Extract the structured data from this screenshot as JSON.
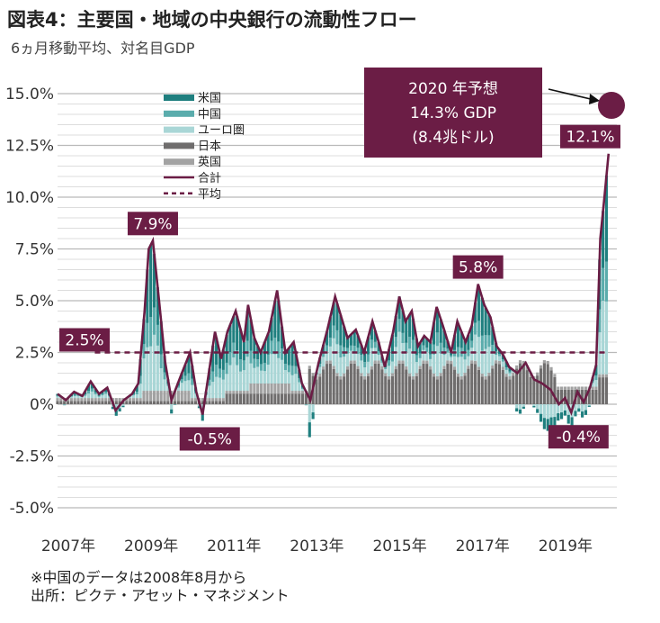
{
  "title": "図表4：主要国・地域の中央銀行の流動性フロー",
  "subtitle": "6ヵ月移動平均、対名目GDP",
  "footnotes": [
    "※中国のデータは2008年8月から",
    "出所：ピクテ・アセット・マネジメント"
  ],
  "colors": {
    "us": "#1f7f7f",
    "china": "#5aacac",
    "euro": "#a9d6d6",
    "japan": "#6f6d6d",
    "uk": "#a2a2a2",
    "total": "#6b1d45",
    "average": "#6b1d45"
  },
  "chart_data": {
    "type": "bar",
    "stacked": true,
    "grid": true,
    "legend_position": "top-left",
    "ylim": [
      -5.0,
      15.0
    ],
    "y_ticks": [
      "-5.0%",
      "-2.5%",
      "0%",
      "2.5%",
      "5.0%",
      "7.5%",
      "10.0%",
      "12.5%",
      "15.0%"
    ],
    "x_range": [
      2007.0,
      2020.5
    ],
    "x_ticks": [
      "2007年",
      "2009年",
      "2011年",
      "2013年",
      "2015年",
      "2017年",
      "2019年"
    ],
    "legend": [
      "米国",
      "中国",
      "ユーロ圏",
      "日本",
      "英国",
      "合計",
      "平均"
    ],
    "average_value": 2.5,
    "total_series": {
      "name": "合計",
      "points": [
        [
          2007.0,
          0.5
        ],
        [
          2007.2,
          0.2
        ],
        [
          2007.4,
          0.6
        ],
        [
          2007.6,
          0.4
        ],
        [
          2007.8,
          1.1
        ],
        [
          2008.0,
          0.5
        ],
        [
          2008.2,
          0.8
        ],
        [
          2008.4,
          -0.3
        ],
        [
          2008.6,
          0.2
        ],
        [
          2008.8,
          0.5
        ],
        [
          2008.95,
          1.0
        ],
        [
          2009.1,
          4.5
        ],
        [
          2009.2,
          7.5
        ],
        [
          2009.3,
          7.9
        ],
        [
          2009.45,
          5.0
        ],
        [
          2009.6,
          2.0
        ],
        [
          2009.75,
          0.2
        ],
        [
          2010.0,
          1.5
        ],
        [
          2010.2,
          2.5
        ],
        [
          2010.35,
          0.6
        ],
        [
          2010.5,
          -0.5
        ],
        [
          2010.65,
          1.5
        ],
        [
          2010.8,
          3.5
        ],
        [
          2010.95,
          2.2
        ],
        [
          2011.1,
          3.5
        ],
        [
          2011.3,
          4.5
        ],
        [
          2011.5,
          3.0
        ],
        [
          2011.6,
          4.8
        ],
        [
          2011.75,
          3.2
        ],
        [
          2011.9,
          2.5
        ],
        [
          2012.1,
          3.5
        ],
        [
          2012.3,
          5.5
        ],
        [
          2012.5,
          2.5
        ],
        [
          2012.7,
          3.0
        ],
        [
          2012.9,
          1.0
        ],
        [
          2013.1,
          0.2
        ],
        [
          2013.3,
          2.0
        ],
        [
          2013.5,
          3.5
        ],
        [
          2013.7,
          5.2
        ],
        [
          2013.85,
          4.2
        ],
        [
          2014.0,
          3.2
        ],
        [
          2014.2,
          3.6
        ],
        [
          2014.4,
          2.5
        ],
        [
          2014.6,
          4.0
        ],
        [
          2014.75,
          3.0
        ],
        [
          2014.9,
          1.8
        ],
        [
          2015.1,
          3.5
        ],
        [
          2015.25,
          5.2
        ],
        [
          2015.4,
          4.0
        ],
        [
          2015.55,
          4.5
        ],
        [
          2015.7,
          2.8
        ],
        [
          2015.85,
          3.3
        ],
        [
          2016.0,
          3.0
        ],
        [
          2016.15,
          4.7
        ],
        [
          2016.3,
          3.8
        ],
        [
          2016.5,
          2.5
        ],
        [
          2016.65,
          4.0
        ],
        [
          2016.85,
          3.0
        ],
        [
          2017.0,
          3.8
        ],
        [
          2017.15,
          5.8
        ],
        [
          2017.3,
          4.8
        ],
        [
          2017.45,
          4.2
        ],
        [
          2017.6,
          2.8
        ],
        [
          2017.75,
          2.4
        ],
        [
          2017.9,
          1.8
        ],
        [
          2018.1,
          1.5
        ],
        [
          2018.3,
          2.0
        ],
        [
          2018.5,
          1.2
        ],
        [
          2018.7,
          1.0
        ],
        [
          2018.9,
          0.7
        ],
        [
          2019.1,
          0.0
        ],
        [
          2019.25,
          0.3
        ],
        [
          2019.4,
          -0.4
        ],
        [
          2019.55,
          0.6
        ],
        [
          2019.7,
          0.1
        ],
        [
          2019.85,
          0.8
        ],
        [
          2020.0,
          1.9
        ],
        [
          2020.1,
          8.0
        ],
        [
          2020.2,
          10.0
        ],
        [
          2020.3,
          12.1
        ]
      ]
    },
    "annotations": [
      {
        "label": "7.9%",
        "x": 2009.3,
        "y": 7.9
      },
      {
        "label": "-0.5%",
        "x": 2010.5,
        "y": -0.5
      },
      {
        "label": "5.8%",
        "x": 2017.15,
        "y": 5.8
      },
      {
        "label": "-0.4%",
        "x": 2019.4,
        "y": -0.4
      },
      {
        "label": "12.1%",
        "x": 2020.3,
        "y": 12.1
      },
      {
        "label": "2.5%",
        "x": 2007.0,
        "y": 2.5
      }
    ],
    "forecast": {
      "lines": [
        "2020 年予想",
        "14.3% GDP",
        "(8.4兆ドル)"
      ],
      "x": 2020.6,
      "y": 14.3
    }
  }
}
